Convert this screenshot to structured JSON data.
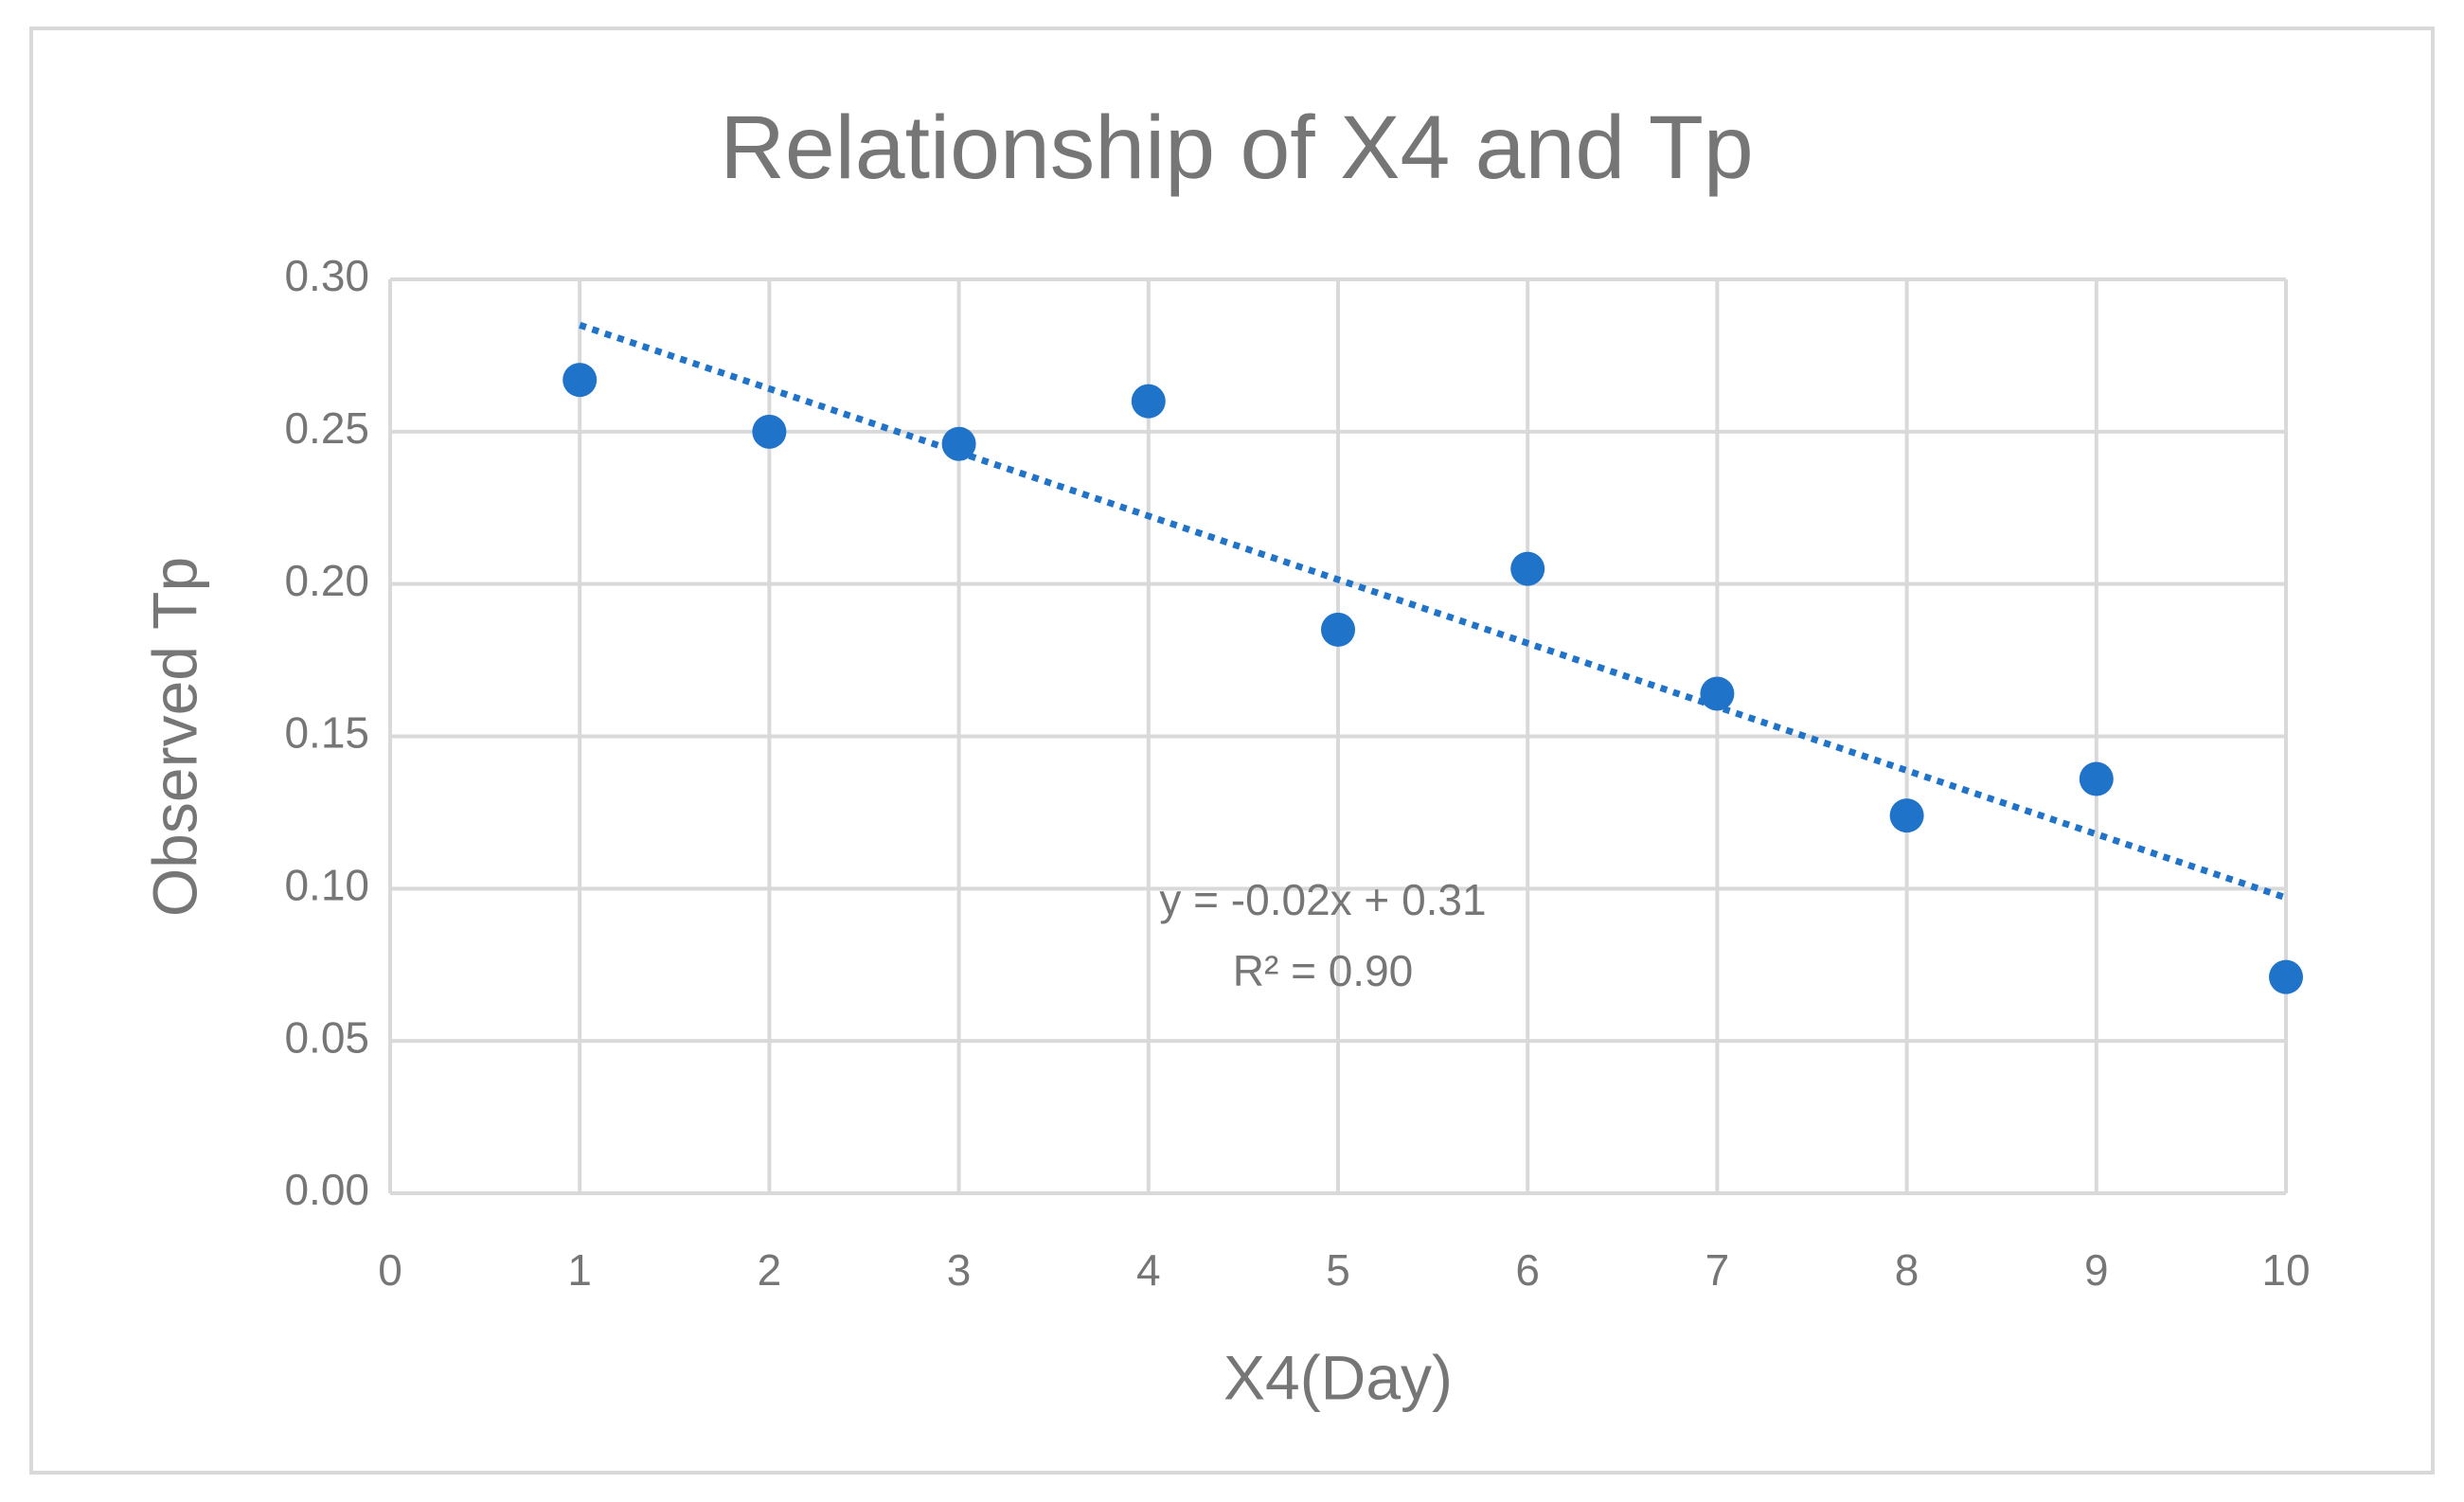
{
  "chart_data": {
    "type": "scatter",
    "title": "Relationship of X4 and Tp",
    "x_label": "X4(Day)",
    "y_label": "Observed Tp",
    "series": [
      {
        "color": "#1f73c8",
        "x": [
          1,
          2,
          3,
          4,
          5,
          6,
          7,
          8,
          9,
          10
        ],
        "values": [
          0.267,
          0.25,
          0.246,
          0.26,
          0.185,
          0.205,
          0.164,
          0.124,
          0.136,
          0.071
        ]
      }
    ],
    "trendline": {
      "color": "#1f73c8",
      "x": [
        1,
        10
      ],
      "values": [
        0.285,
        0.097
      ]
    },
    "annotations": [
      "y = -0.02x + 0.31",
      "R² = 0.90"
    ],
    "xlim": [
      0,
      10
    ],
    "xticks": [
      0,
      1,
      2,
      3,
      4,
      5,
      6,
      7,
      8,
      9,
      10
    ],
    "ylim": [
      0,
      0.3
    ],
    "yticks": [
      {
        "value": 0,
        "label": "0.00"
      },
      {
        "value": 0.05,
        "label": "0.05"
      },
      {
        "value": 0.1,
        "label": "0.10"
      },
      {
        "value": 0.15,
        "label": "0.15"
      },
      {
        "value": 0.2,
        "label": "0.20"
      },
      {
        "value": 0.25,
        "label": "0.25"
      },
      {
        "value": 0.3,
        "label": "0.30"
      }
    ],
    "grid": true
  }
}
